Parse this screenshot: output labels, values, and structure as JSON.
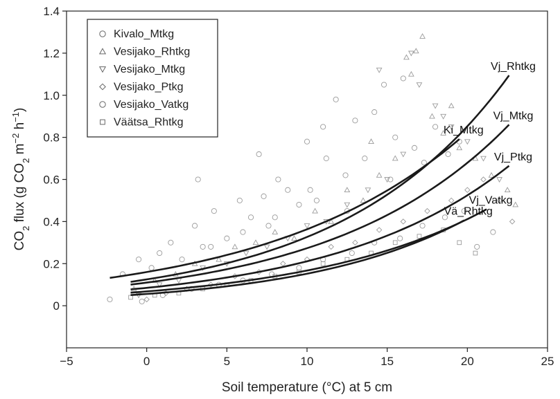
{
  "chart_data": {
    "type": "scatter",
    "title": "",
    "xlabel": "Soil temperature (°C) at 5 cm",
    "ylabel": {
      "prefix": "CO",
      "sub1": "2",
      "mid": " flux (g CO",
      "sub2": "2",
      "mid2": " m",
      "sup1": "−2",
      "mid3": " h",
      "sup2": "−1",
      "suffix": ")"
    },
    "xlim": [
      -5,
      25
    ],
    "ylim": [
      -0.2,
      1.4
    ],
    "xticks": [
      -5,
      0,
      5,
      10,
      15,
      20,
      25
    ],
    "xtick_labels": [
      "−5",
      "0",
      "5",
      "10",
      "15",
      "20",
      "25"
    ],
    "yticks": [
      0,
      0.2,
      0.4,
      0.6,
      0.8,
      1.0,
      1.2,
      1.4
    ],
    "ytick_labels": [
      "0",
      "0.2",
      "0.4",
      "0.6",
      "0.8",
      "1.0",
      "1.2",
      "1.4"
    ],
    "legend_position": "top-left",
    "marker_color": "#9a9a9a",
    "curve_color": "#1a1a1a",
    "series": [
      {
        "name": "Kivalo_Mtkg",
        "marker": "circle",
        "x": [
          -2.3,
          -1.5,
          -0.5,
          0.3,
          0.8,
          1.5,
          2.2,
          3.0,
          3.5,
          4.2,
          5.0,
          5.8,
          6.5,
          7.0,
          7.6,
          8.2,
          8.8,
          9.5,
          10.0,
          10.6,
          11.2,
          11.8,
          12.4,
          13.0,
          13.6,
          14.2,
          14.8,
          15.5,
          16.0,
          16.7,
          17.3,
          18.0,
          18.8,
          19.5,
          4.0,
          6.0,
          8.0,
          10.2,
          12.5,
          15.2,
          3.2,
          7.3,
          11.0
        ],
        "y": [
          0.03,
          0.15,
          0.22,
          0.18,
          0.25,
          0.3,
          0.22,
          0.38,
          0.28,
          0.45,
          0.32,
          0.5,
          0.42,
          0.72,
          0.38,
          0.6,
          0.55,
          0.48,
          0.78,
          0.5,
          0.7,
          0.98,
          0.62,
          0.88,
          0.7,
          0.92,
          1.05,
          0.8,
          1.08,
          0.75,
          0.68,
          0.85,
          0.72,
          0.78,
          0.28,
          0.35,
          0.42,
          0.55,
          0.45,
          0.6,
          0.6,
          0.52,
          0.85
        ]
      },
      {
        "name": "Vesijako_Rhtkg",
        "marker": "triangle-up",
        "x": [
          -0.8,
          0.5,
          1.8,
          3.0,
          4.5,
          5.5,
          6.8,
          8.0,
          9.2,
          10.5,
          11.5,
          12.5,
          13.5,
          14.5,
          15.5,
          16.2,
          16.8,
          17.2,
          17.8,
          18.5,
          19.5,
          20.5,
          21.5,
          22.5,
          23.0,
          14.0,
          16.5,
          19.0
        ],
        "y": [
          0.08,
          0.12,
          0.15,
          0.2,
          0.22,
          0.28,
          0.3,
          0.35,
          0.32,
          0.45,
          0.4,
          0.55,
          0.5,
          0.62,
          0.7,
          1.18,
          1.21,
          1.28,
          0.9,
          0.82,
          0.75,
          0.7,
          0.62,
          0.55,
          0.48,
          0.78,
          1.1,
          0.95
        ]
      },
      {
        "name": "Vesijako_Mtkg",
        "marker": "triangle-down",
        "x": [
          -0.5,
          0.8,
          2.0,
          3.5,
          5.0,
          6.2,
          7.5,
          8.8,
          10.0,
          11.2,
          12.5,
          13.8,
          15.0,
          16.0,
          17.0,
          18.0,
          19.0,
          20.0,
          21.0,
          22.0,
          14.5,
          16.5,
          18.5
        ],
        "y": [
          0.05,
          0.1,
          0.12,
          0.18,
          0.2,
          0.25,
          0.28,
          0.32,
          0.38,
          0.4,
          0.48,
          0.55,
          0.6,
          0.72,
          1.05,
          0.95,
          0.85,
          0.78,
          0.7,
          0.6,
          1.12,
          1.2,
          0.9
        ]
      },
      {
        "name": "Vesijako_Ptkg",
        "marker": "diamond",
        "x": [
          0.0,
          1.2,
          2.5,
          4.0,
          5.5,
          7.0,
          8.5,
          10.0,
          11.5,
          13.0,
          14.5,
          16.0,
          17.5,
          19.0,
          20.0,
          21.0,
          22.0,
          22.8
        ],
        "y": [
          0.03,
          0.06,
          0.08,
          0.1,
          0.14,
          0.16,
          0.2,
          0.22,
          0.28,
          0.3,
          0.36,
          0.4,
          0.45,
          0.5,
          0.55,
          0.6,
          0.5,
          0.4
        ]
      },
      {
        "name": "Vesijako_Vatkg",
        "marker": "circle",
        "x": [
          -0.3,
          1.0,
          2.8,
          4.5,
          6.0,
          7.8,
          9.5,
          11.0,
          12.8,
          14.2,
          15.8,
          17.2,
          18.6,
          19.8,
          20.6,
          21.6
        ],
        "y": [
          0.02,
          0.05,
          0.08,
          0.1,
          0.12,
          0.15,
          0.18,
          0.22,
          0.25,
          0.3,
          0.32,
          0.38,
          0.42,
          0.45,
          0.28,
          0.35
        ]
      },
      {
        "name": "Väätsa_Rhtkg",
        "marker": "square",
        "x": [
          -1.0,
          0.5,
          2.0,
          3.5,
          5.0,
          6.5,
          8.0,
          9.5,
          11.0,
          12.5,
          14.0,
          15.5,
          17.0,
          18.5,
          19.5,
          20.5
        ],
        "y": [
          0.04,
          0.05,
          0.06,
          0.08,
          0.1,
          0.12,
          0.14,
          0.16,
          0.2,
          0.22,
          0.25,
          0.3,
          0.33,
          0.36,
          0.3,
          0.25
        ]
      }
    ],
    "fitted_curves": [
      {
        "label": "Ki_Mtkg",
        "a": 0.16,
        "b": 0.082,
        "x_range": [
          -2.3,
          19.5
        ]
      },
      {
        "label": "Vj_Rhtkg",
        "a": 0.125,
        "b": 0.096,
        "x_range": [
          -1.0,
          22.6
        ]
      },
      {
        "label": "Vj_Mtkg",
        "a": 0.11,
        "b": 0.091,
        "x_range": [
          -1.0,
          22.6
        ]
      },
      {
        "label": "Vj_Ptkg",
        "a": 0.085,
        "b": 0.091,
        "x_range": [
          -1.0,
          22.6
        ]
      },
      {
        "label": "Vj_Vatkg",
        "a": 0.068,
        "b": 0.09,
        "x_range": [
          -1.0,
          21.2
        ]
      },
      {
        "label": "Vä_Rhtkg",
        "a": 0.056,
        "b": 0.1,
        "x_range": [
          -1.0,
          19.8
        ]
      }
    ]
  }
}
